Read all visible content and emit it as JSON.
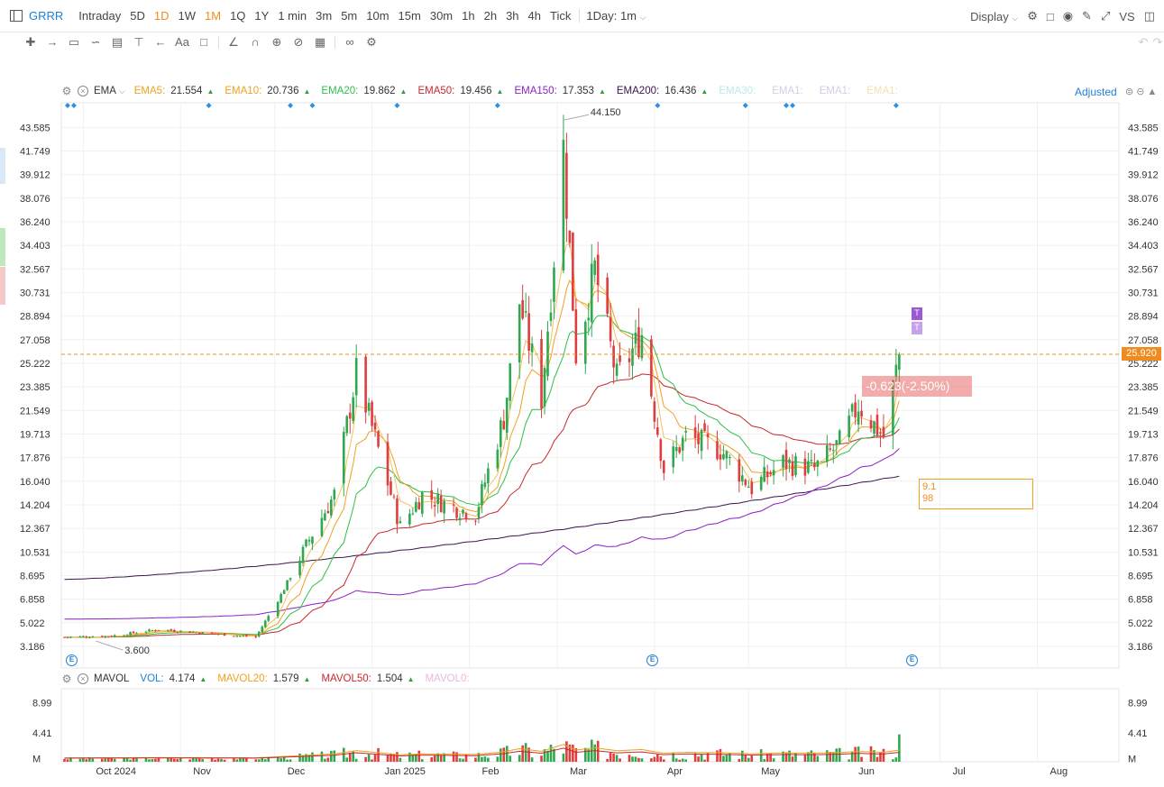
{
  "toolbar": {
    "symbol": "GRRR",
    "timeframes": [
      "Intraday",
      "5D",
      "1D",
      "1W",
      "1M",
      "1Q",
      "1Y",
      "1 min",
      "3m",
      "5m",
      "10m",
      "15m",
      "30m",
      "1h",
      "2h",
      "3h",
      "4h",
      "Tick"
    ],
    "active_timeframes": [
      "1D",
      "1M"
    ],
    "interval_select": "1Day: 1m",
    "display_label": "Display",
    "vs_label": "VS",
    "icons": [
      "panel-icon",
      "gear-icon",
      "square-icon",
      "camera-icon",
      "pencil-icon",
      "fullscreen-icon",
      "compare-icon",
      "layout-icon"
    ]
  },
  "drawbar": {
    "icons": [
      "crosshair-icon",
      "line-icon",
      "channel-icon",
      "pattern-icon",
      "fib-icon",
      "measure-icon",
      "arrow-icon",
      "text-icon",
      "note-icon",
      "ruler-icon",
      "magnet-icon",
      "hide-icon",
      "lock-icon",
      "trash-icon",
      "eye-icon",
      "settings-icon",
      "undo-icon",
      "redo-icon"
    ],
    "text_tool": "Aa"
  },
  "price_legend": {
    "indicator": "EMA",
    "items": [
      {
        "label": "EMA5:",
        "value": "21.554",
        "color": "#f0a020"
      },
      {
        "label": "EMA10:",
        "value": "20.736",
        "color": "#f0a020"
      },
      {
        "label": "EMA20:",
        "value": "19.862",
        "color": "#2fbf4a"
      },
      {
        "label": "EMA50:",
        "value": "19.456",
        "color": "#c8282d"
      },
      {
        "label": "EMA150:",
        "value": "17.353",
        "color": "#8b1fc7"
      },
      {
        "label": "EMA200:",
        "value": "16.436",
        "color": "#3a1450"
      },
      {
        "label": "EMA30:",
        "value": "",
        "color": "#bfe8ee"
      },
      {
        "label": "EMA1:",
        "value": "",
        "color": "#cfcfe6"
      },
      {
        "label": "EMA1:",
        "value": "",
        "color": "#d8c8ec"
      },
      {
        "label": "EMA1:",
        "value": "",
        "color": "#f5dfb0"
      }
    ],
    "adjusted": "Adjusted"
  },
  "volume_legend": {
    "indicator": "MAVOL",
    "items": [
      {
        "label": "VOL:",
        "value": "4.174",
        "color": "#1f7fd6"
      },
      {
        "label": "MAVOL20:",
        "value": "1.579",
        "color": "#f0a020"
      },
      {
        "label": "MAVOL50:",
        "value": "1.504",
        "color": "#c8282d"
      },
      {
        "label": "MAVOL0:",
        "value": "",
        "color": "#e8b8e0"
      }
    ]
  },
  "price_axis": {
    "ticks": [
      "43.585",
      "41.749",
      "39.912",
      "38.076",
      "36.240",
      "34.403",
      "32.567",
      "30.731",
      "28.894",
      "27.058",
      "25.222",
      "23.385",
      "21.549",
      "19.713",
      "17.876",
      "16.040",
      "14.204",
      "12.367",
      "10.531",
      "8.695",
      "6.858",
      "5.022",
      "3.186"
    ],
    "current_price": "25.920",
    "high_label": "44.150",
    "low_label": "3.600"
  },
  "volume_axis": {
    "ticks": [
      "8.99",
      "4.41",
      "M"
    ]
  },
  "time_axis": {
    "labels": [
      "Oct 2024",
      "Nov",
      "Dec",
      "Jan 2025",
      "Feb",
      "Mar",
      "Apr",
      "May",
      "Jun",
      "Jul",
      "Aug"
    ]
  },
  "annotations": {
    "change": "-0.623(-2.50%)",
    "measure_line1": "9.1",
    "measure_line2": "98",
    "marker_t": "T",
    "earnings": "E"
  },
  "colors": {
    "up": "#2fa84f",
    "down": "#e03e3e",
    "accent": "#f08c1f",
    "link": "#1f7fd6"
  },
  "chart_data": {
    "type": "candlestick",
    "symbol": "GRRR",
    "period": "daily",
    "anchors": [
      {
        "d": "2024-09-25",
        "p": 3.9
      },
      {
        "d": "2024-10-10",
        "p": 4.0
      },
      {
        "d": "2024-10-25",
        "p": 4.5
      },
      {
        "d": "2024-11-10",
        "p": 4.2
      },
      {
        "d": "2024-11-25",
        "p": 3.9
      },
      {
        "d": "2024-12-03",
        "p": 7.2
      },
      {
        "d": "2024-12-12",
        "p": 11.5
      },
      {
        "d": "2024-12-20",
        "p": 15.0
      },
      {
        "d": "2024-12-27",
        "p": 24.5
      },
      {
        "d": "2025-01-03",
        "p": 18.5
      },
      {
        "d": "2025-01-10",
        "p": 12.5
      },
      {
        "d": "2025-01-17",
        "p": 15.0
      },
      {
        "d": "2025-01-27",
        "p": 14.0
      },
      {
        "d": "2025-02-03",
        "p": 13.5
      },
      {
        "d": "2025-02-12",
        "p": 21.0
      },
      {
        "d": "2025-02-17",
        "p": 30.0
      },
      {
        "d": "2025-02-24",
        "p": 22.5
      },
      {
        "d": "2025-03-03",
        "p": 42.0
      },
      {
        "d": "2025-03-07",
        "p": 26.0
      },
      {
        "d": "2025-03-13",
        "p": 32.5
      },
      {
        "d": "2025-03-20",
        "p": 24.0
      },
      {
        "d": "2025-03-28",
        "p": 27.5
      },
      {
        "d": "2025-04-04",
        "p": 17.0
      },
      {
        "d": "2025-04-11",
        "p": 19.5
      },
      {
        "d": "2025-04-22",
        "p": 18.5
      },
      {
        "d": "2025-05-02",
        "p": 15.5
      },
      {
        "d": "2025-05-12",
        "p": 17.5
      },
      {
        "d": "2025-05-22",
        "p": 17.0
      },
      {
        "d": "2025-05-30",
        "p": 19.0
      },
      {
        "d": "2025-06-05",
        "p": 22.0
      },
      {
        "d": "2025-06-13",
        "p": 19.5
      },
      {
        "d": "2025-06-18",
        "p": 25.9
      }
    ],
    "ema_end_values": {
      "EMA5": 21.554,
      "EMA10": 20.736,
      "EMA20": 19.862,
      "EMA50": 19.456,
      "EMA150": 17.353,
      "EMA200": 16.436
    },
    "ema200_start": 8.4,
    "ema150_start": 5.4,
    "high": {
      "d": "2025-03-03",
      "value": 44.15
    },
    "low": {
      "d": "2024-10-05",
      "value": 3.6
    },
    "last": 25.92,
    "change": -0.623,
    "change_pct": -2.5,
    "volume_peak_millions": 9.5,
    "ylim": [
      1.5,
      45.5
    ],
    "xlim": [
      "2024-09-24",
      "2025-08-27"
    ],
    "volume_ylim": [
      0,
      11
    ]
  }
}
